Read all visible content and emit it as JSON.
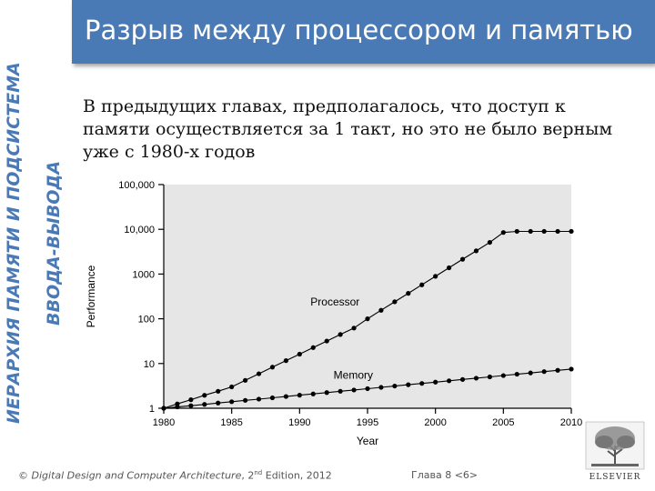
{
  "slide": {
    "title": "Разрыв между процессором и памятью",
    "side_label_line1": "ИЕРАРХИЯ ПАМЯТИ И ПОДСИСТЕМА",
    "side_label_line2": "ВВОДА-ВЫВОДА",
    "body_text": "В предыдущих главах, предполагалось, что доступ к памяти осуществляется за 1 такт, но это не было верным уже с 1980-х годов"
  },
  "footer": {
    "copyright": "© ",
    "book_title": "Digital Design and Computer Architecture",
    "edition_prefix": ", 2",
    "edition_sup": "nd",
    "edition_suffix": " Edition, 2012",
    "page": "Глава 8 <6>"
  },
  "logo": {
    "text": "ELSEVIER",
    "icon": "elsevier-tree-icon"
  },
  "chart_data": {
    "type": "line",
    "xlabel": "Year",
    "ylabel": "Performance",
    "y_scale": "log",
    "xlim": [
      1980,
      2010
    ],
    "ylim": [
      1,
      100000
    ],
    "x_ticks": [
      "1980",
      "1985",
      "1990",
      "1995",
      "2000",
      "2005",
      "2010"
    ],
    "y_ticks": [
      "1",
      "10",
      "100",
      "1000",
      "10,000",
      "100,000"
    ],
    "grid": false,
    "background": "#e6e6e6",
    "series": [
      {
        "name": "Processor",
        "x": [
          1980,
          1981,
          1982,
          1983,
          1984,
          1985,
          1986,
          1987,
          1988,
          1989,
          1990,
          1991,
          1992,
          1993,
          1994,
          1995,
          1996,
          1997,
          1998,
          1999,
          2000,
          2001,
          2002,
          2003,
          2004,
          2005,
          2006,
          2007,
          2008,
          2009,
          2010
        ],
        "values": [
          1,
          1.25,
          1.55,
          1.95,
          2.4,
          3,
          4.2,
          5.9,
          8.3,
          11.6,
          16.2,
          22.7,
          31.8,
          44.5,
          62,
          100,
          155,
          240,
          370,
          575,
          890,
          1380,
          2140,
          3300,
          5100,
          8500,
          9000,
          9000,
          9000,
          9000,
          9000
        ]
      },
      {
        "name": "Memory",
        "x": [
          1980,
          1981,
          1982,
          1983,
          1984,
          1985,
          1986,
          1987,
          1988,
          1989,
          1990,
          1991,
          1992,
          1993,
          1994,
          1995,
          1996,
          1997,
          1998,
          1999,
          2000,
          2001,
          2002,
          2003,
          2004,
          2005,
          2006,
          2007,
          2008,
          2009,
          2010
        ],
        "values": [
          1,
          1.07,
          1.14,
          1.22,
          1.31,
          1.4,
          1.5,
          1.6,
          1.71,
          1.83,
          1.96,
          2.09,
          2.24,
          2.4,
          2.56,
          2.74,
          2.93,
          3.14,
          3.36,
          3.59,
          3.84,
          4.11,
          4.4,
          4.7,
          5.03,
          5.38,
          5.76,
          6.16,
          6.59,
          7.05,
          7.5
        ]
      }
    ]
  }
}
